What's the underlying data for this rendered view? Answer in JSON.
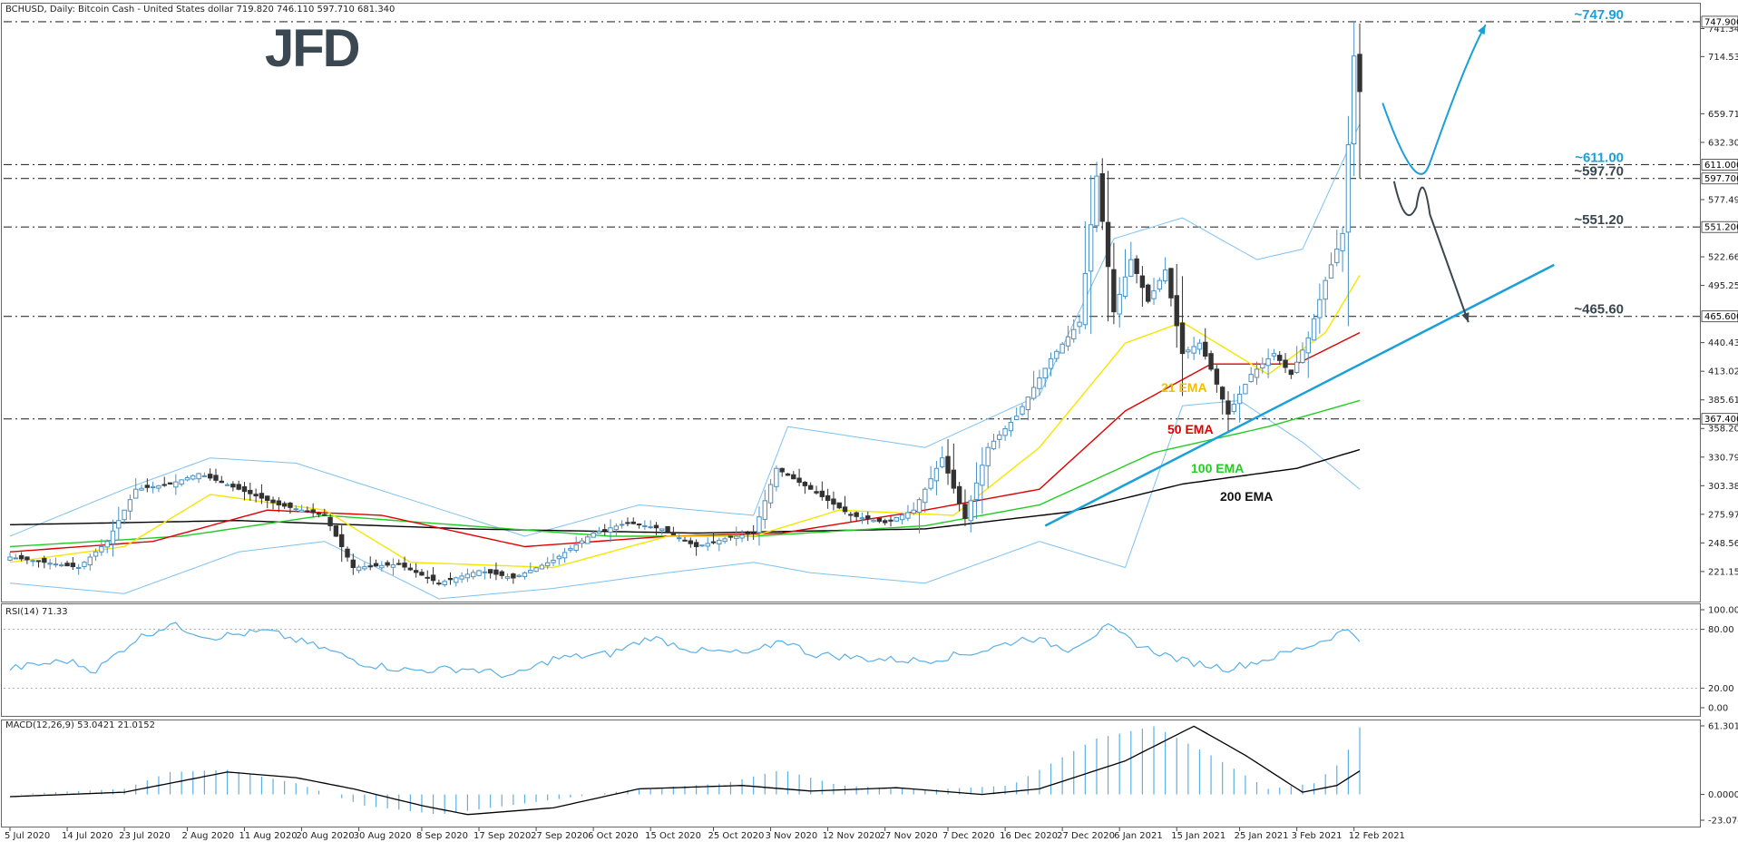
{
  "header": {
    "symbol_line": "BCHUSD, Daily:  Bitcoin Cash - United States dollar  719.820 746.110 597.710 681.340"
  },
  "logo": {
    "text": "JFD"
  },
  "colors": {
    "ema21": "#f5e600",
    "ema50": "#e00000",
    "ema100": "#22cc22",
    "ema200": "#000000",
    "bollinger": "#7ec1ee",
    "trendline": "#1aa0d8",
    "bull_arrow": "#1aa0d8",
    "bear_arrow": "#3a4750",
    "up_candle": "#4a90c2",
    "down_candle": "#333333",
    "rsi": "#5ab0e6",
    "macd_hist": "#5ab0e6",
    "macd_signal": "#000000"
  },
  "ema_labels": [
    {
      "text": "21 EMA",
      "color": "#f0c000"
    },
    {
      "text": "50 EMA",
      "color": "#e00000"
    },
    {
      "text": "100 EMA",
      "color": "#22cc22"
    },
    {
      "text": "200 EMA",
      "color": "#111111"
    }
  ],
  "levels": [
    {
      "price": 747.9,
      "label": "~747.90",
      "axis_label": "747.900",
      "label_color": "#1aa0d8"
    },
    {
      "price": 611.0,
      "label": "~611.00",
      "axis_label": "611.000",
      "label_color": "#1aa0d8"
    },
    {
      "price": 597.7,
      "label": "~597.70",
      "axis_label": "597.700",
      "label_color": "#3a4750"
    },
    {
      "price": 551.2,
      "label": "~551.20",
      "axis_label": "551.200",
      "label_color": "#3a4750"
    },
    {
      "price": 465.6,
      "label": "~465.60",
      "axis_label": "465.600",
      "label_color": "#3a4750"
    },
    {
      "price": 367.4,
      "label": "",
      "axis_label": "367.400",
      "label_color": "#3a4750"
    }
  ],
  "price_axis_ticks": [
    "741.340",
    "714.530",
    "659.710",
    "632.300",
    "577.490",
    "522.660",
    "495.250",
    "440.430",
    "413.020",
    "385.610",
    "358.200",
    "330.790",
    "303.380",
    "275.970",
    "248.560",
    "221.150"
  ],
  "rsi": {
    "title": "RSI(14) 71.33",
    "ticks": [
      "100.00",
      "80.00",
      "20.00",
      "0.00"
    ]
  },
  "macd": {
    "title": "MACD(12,26,9) 53.0421 21.0152",
    "ticks": [
      "61.3012",
      "0.0000",
      "-23.0740"
    ]
  },
  "date_labels": [
    "5 Jul 2020",
    "14 Jul 2020",
    "23 Jul 2020",
    "2 Aug 2020",
    "11 Aug 2020",
    "20 Aug 2020",
    "30 Aug 2020",
    "8 Sep 2020",
    "17 Sep 2020",
    "27 Sep 2020",
    "6 Oct 2020",
    "15 Oct 2020",
    "25 Oct 2020",
    "3 Nov 2020",
    "12 Nov 2020",
    "27 Nov 2020",
    "7 Dec 2020",
    "16 Dec 2020",
    "27 Dec 2020",
    "6 Jan 2021",
    "15 Jan 2021",
    "25 Jan 2021",
    "3 Feb 2021",
    "12 Feb 2021"
  ],
  "chart_data": {
    "type": "candlestick",
    "title": "",
    "ylim": [
      195,
      760
    ],
    "price_keyframes": [
      {
        "i": 0,
        "p": 235
      },
      {
        "i": 6,
        "p": 230
      },
      {
        "i": 12,
        "p": 225
      },
      {
        "i": 17,
        "p": 250
      },
      {
        "i": 22,
        "p": 300
      },
      {
        "i": 28,
        "p": 305
      },
      {
        "i": 33,
        "p": 315
      },
      {
        "i": 40,
        "p": 300
      },
      {
        "i": 47,
        "p": 285
      },
      {
        "i": 55,
        "p": 275
      },
      {
        "i": 60,
        "p": 225
      },
      {
        "i": 68,
        "p": 228
      },
      {
        "i": 75,
        "p": 210
      },
      {
        "i": 82,
        "p": 222
      },
      {
        "i": 88,
        "p": 215
      },
      {
        "i": 95,
        "p": 232
      },
      {
        "i": 102,
        "p": 258
      },
      {
        "i": 108,
        "p": 268
      },
      {
        "i": 114,
        "p": 262
      },
      {
        "i": 120,
        "p": 245
      },
      {
        "i": 126,
        "p": 254
      },
      {
        "i": 130,
        "p": 258
      },
      {
        "i": 134,
        "p": 320
      },
      {
        "i": 140,
        "p": 300
      },
      {
        "i": 147,
        "p": 275
      },
      {
        "i": 153,
        "p": 268
      },
      {
        "i": 158,
        "p": 280
      },
      {
        "i": 163,
        "p": 330
      },
      {
        "i": 167,
        "p": 272
      },
      {
        "i": 171,
        "p": 340
      },
      {
        "i": 176,
        "p": 370
      },
      {
        "i": 182,
        "p": 425
      },
      {
        "i": 187,
        "p": 460
      },
      {
        "i": 190,
        "p": 600
      },
      {
        "i": 193,
        "p": 470
      },
      {
        "i": 196,
        "p": 520
      },
      {
        "i": 199,
        "p": 480
      },
      {
        "i": 202,
        "p": 510
      },
      {
        "i": 205,
        "p": 430
      },
      {
        "i": 208,
        "p": 440
      },
      {
        "i": 210,
        "p": 415
      },
      {
        "i": 213,
        "p": 372
      },
      {
        "i": 217,
        "p": 410
      },
      {
        "i": 221,
        "p": 430
      },
      {
        "i": 224,
        "p": 410
      },
      {
        "i": 227,
        "p": 445
      },
      {
        "i": 230,
        "p": 500
      },
      {
        "i": 233,
        "p": 545
      },
      {
        "i": 235,
        "p": 715
      },
      {
        "i": 236,
        "p": 681
      }
    ],
    "ema_keyframes": {
      "ema21": [
        {
          "i": 0,
          "p": 230
        },
        {
          "i": 20,
          "p": 245
        },
        {
          "i": 35,
          "p": 295
        },
        {
          "i": 55,
          "p": 280
        },
        {
          "i": 70,
          "p": 230
        },
        {
          "i": 95,
          "p": 225
        },
        {
          "i": 115,
          "p": 255
        },
        {
          "i": 130,
          "p": 255
        },
        {
          "i": 145,
          "p": 280
        },
        {
          "i": 165,
          "p": 275
        },
        {
          "i": 180,
          "p": 340
        },
        {
          "i": 195,
          "p": 440
        },
        {
          "i": 205,
          "p": 460
        },
        {
          "i": 220,
          "p": 410
        },
        {
          "i": 230,
          "p": 450
        },
        {
          "i": 236,
          "p": 505
        }
      ],
      "ema50": [
        {
          "i": 0,
          "p": 240
        },
        {
          "i": 25,
          "p": 250
        },
        {
          "i": 45,
          "p": 280
        },
        {
          "i": 65,
          "p": 275
        },
        {
          "i": 90,
          "p": 245
        },
        {
          "i": 115,
          "p": 255
        },
        {
          "i": 135,
          "p": 258
        },
        {
          "i": 160,
          "p": 280
        },
        {
          "i": 180,
          "p": 300
        },
        {
          "i": 195,
          "p": 375
        },
        {
          "i": 210,
          "p": 420
        },
        {
          "i": 225,
          "p": 420
        },
        {
          "i": 236,
          "p": 450
        }
      ],
      "ema100": [
        {
          "i": 0,
          "p": 245
        },
        {
          "i": 30,
          "p": 255
        },
        {
          "i": 55,
          "p": 275
        },
        {
          "i": 80,
          "p": 265
        },
        {
          "i": 105,
          "p": 255
        },
        {
          "i": 130,
          "p": 255
        },
        {
          "i": 160,
          "p": 265
        },
        {
          "i": 180,
          "p": 285
        },
        {
          "i": 200,
          "p": 335
        },
        {
          "i": 220,
          "p": 360
        },
        {
          "i": 236,
          "p": 385
        }
      ],
      "ema200": [
        {
          "i": 0,
          "p": 266
        },
        {
          "i": 40,
          "p": 270
        },
        {
          "i": 80,
          "p": 262
        },
        {
          "i": 120,
          "p": 258
        },
        {
          "i": 160,
          "p": 262
        },
        {
          "i": 185,
          "p": 278
        },
        {
          "i": 205,
          "p": 305
        },
        {
          "i": 225,
          "p": 320
        },
        {
          "i": 236,
          "p": 338
        }
      ],
      "bb_upper": [
        {
          "i": 0,
          "p": 255
        },
        {
          "i": 20,
          "p": 300
        },
        {
          "i": 35,
          "p": 330
        },
        {
          "i": 50,
          "p": 325
        },
        {
          "i": 70,
          "p": 290
        },
        {
          "i": 90,
          "p": 255
        },
        {
          "i": 110,
          "p": 285
        },
        {
          "i": 130,
          "p": 275
        },
        {
          "i": 136,
          "p": 360
        },
        {
          "i": 160,
          "p": 340
        },
        {
          "i": 180,
          "p": 390
        },
        {
          "i": 193,
          "p": 540
        },
        {
          "i": 205,
          "p": 560
        },
        {
          "i": 218,
          "p": 520
        },
        {
          "i": 226,
          "p": 530
        },
        {
          "i": 236,
          "p": 650
        }
      ],
      "bb_lower": [
        {
          "i": 0,
          "p": 210
        },
        {
          "i": 20,
          "p": 200
        },
        {
          "i": 40,
          "p": 240
        },
        {
          "i": 55,
          "p": 250
        },
        {
          "i": 75,
          "p": 195
        },
        {
          "i": 95,
          "p": 205
        },
        {
          "i": 115,
          "p": 220
        },
        {
          "i": 130,
          "p": 230
        },
        {
          "i": 140,
          "p": 220
        },
        {
          "i": 160,
          "p": 210
        },
        {
          "i": 180,
          "p": 250
        },
        {
          "i": 195,
          "p": 225
        },
        {
          "i": 205,
          "p": 380
        },
        {
          "i": 215,
          "p": 385
        },
        {
          "i": 226,
          "p": 345
        },
        {
          "i": 236,
          "p": 300
        }
      ]
    },
    "trendline": {
      "from": {
        "i": 181,
        "p": 265
      },
      "to": {
        "i": 270,
        "p": 515
      }
    },
    "bull_arrow": [
      {
        "i": 240,
        "p": 670
      },
      {
        "i": 246,
        "p": 612
      },
      {
        "i": 254,
        "p": 705
      },
      {
        "i": 258,
        "p": 745
      }
    ],
    "bear_arrow": [
      {
        "i": 242,
        "p": 595
      },
      {
        "i": 244,
        "p": 555
      },
      {
        "i": 247,
        "p": 585
      },
      {
        "i": 255,
        "p": 460
      }
    ],
    "rsi_keyframes": [
      {
        "i": 0,
        "p": 40
      },
      {
        "i": 10,
        "p": 48
      },
      {
        "i": 15,
        "p": 38
      },
      {
        "i": 22,
        "p": 70
      },
      {
        "i": 28,
        "p": 85
      },
      {
        "i": 35,
        "p": 72
      },
      {
        "i": 45,
        "p": 78
      },
      {
        "i": 55,
        "p": 60
      },
      {
        "i": 62,
        "p": 45
      },
      {
        "i": 70,
        "p": 38
      },
      {
        "i": 80,
        "p": 40
      },
      {
        "i": 88,
        "p": 32
      },
      {
        "i": 95,
        "p": 50
      },
      {
        "i": 105,
        "p": 55
      },
      {
        "i": 112,
        "p": 72
      },
      {
        "i": 120,
        "p": 58
      },
      {
        "i": 130,
        "p": 55
      },
      {
        "i": 135,
        "p": 70
      },
      {
        "i": 140,
        "p": 55
      },
      {
        "i": 150,
        "p": 50
      },
      {
        "i": 160,
        "p": 48
      },
      {
        "i": 170,
        "p": 58
      },
      {
        "i": 178,
        "p": 72
      },
      {
        "i": 185,
        "p": 60
      },
      {
        "i": 192,
        "p": 82
      },
      {
        "i": 198,
        "p": 62
      },
      {
        "i": 205,
        "p": 48
      },
      {
        "i": 213,
        "p": 40
      },
      {
        "i": 220,
        "p": 50
      },
      {
        "i": 228,
        "p": 65
      },
      {
        "i": 234,
        "p": 80
      },
      {
        "i": 236,
        "p": 71.33
      }
    ],
    "macd_keyframes": [
      {
        "i": 0,
        "p": -2
      },
      {
        "i": 20,
        "p": 2
      },
      {
        "i": 38,
        "p": 20
      },
      {
        "i": 50,
        "p": 15
      },
      {
        "i": 60,
        "p": 5
      },
      {
        "i": 72,
        "p": -10
      },
      {
        "i": 80,
        "p": -18
      },
      {
        "i": 95,
        "p": -12
      },
      {
        "i": 110,
        "p": 5
      },
      {
        "i": 128,
        "p": 8
      },
      {
        "i": 140,
        "p": 3
      },
      {
        "i": 155,
        "p": 6
      },
      {
        "i": 170,
        "p": 0
      },
      {
        "i": 180,
        "p": 5
      },
      {
        "i": 195,
        "p": 30
      },
      {
        "i": 207,
        "p": 61
      },
      {
        "i": 216,
        "p": 35
      },
      {
        "i": 226,
        "p": 2
      },
      {
        "i": 232,
        "p": 8
      },
      {
        "i": 236,
        "p": 21
      }
    ],
    "macd_hist_keyframes": [
      {
        "i": 0,
        "p": 0
      },
      {
        "i": 20,
        "p": 5
      },
      {
        "i": 28,
        "p": 20
      },
      {
        "i": 38,
        "p": 22
      },
      {
        "i": 50,
        "p": 10
      },
      {
        "i": 62,
        "p": -10
      },
      {
        "i": 75,
        "p": -18
      },
      {
        "i": 90,
        "p": -8
      },
      {
        "i": 110,
        "p": 5
      },
      {
        "i": 125,
        "p": 10
      },
      {
        "i": 135,
        "p": 22
      },
      {
        "i": 145,
        "p": 8
      },
      {
        "i": 160,
        "p": 4
      },
      {
        "i": 175,
        "p": 8
      },
      {
        "i": 190,
        "p": 50
      },
      {
        "i": 200,
        "p": 61
      },
      {
        "i": 210,
        "p": 35
      },
      {
        "i": 220,
        "p": 5
      },
      {
        "i": 228,
        "p": 10
      },
      {
        "i": 233,
        "p": 30
      },
      {
        "i": 236,
        "p": 60
      }
    ],
    "n_bars": 237
  }
}
